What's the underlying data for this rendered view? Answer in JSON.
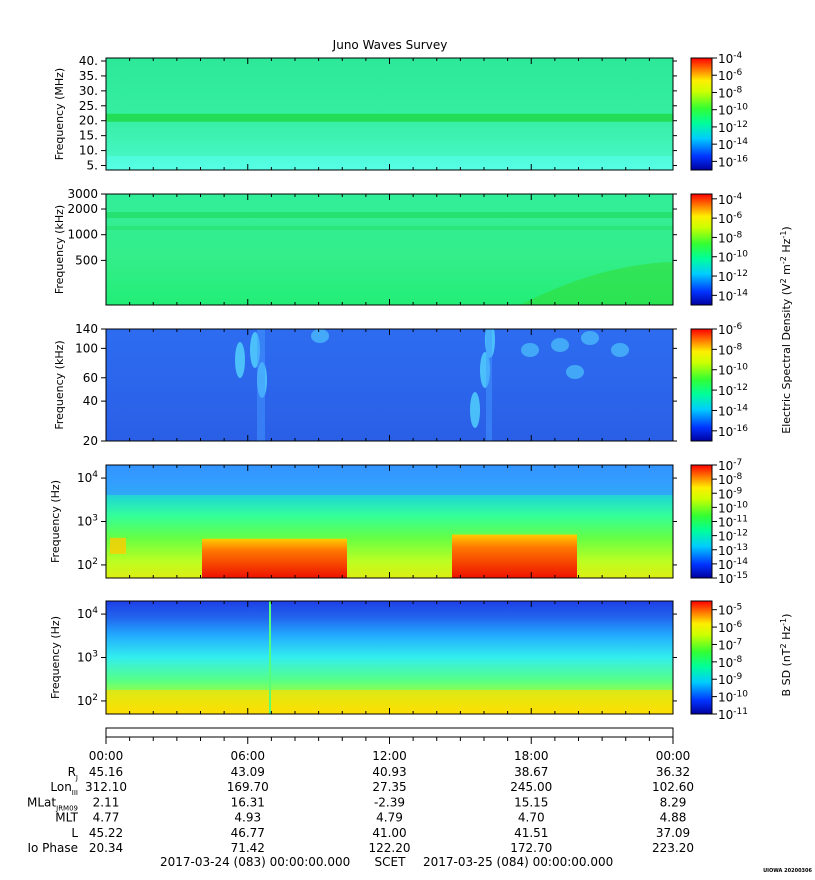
{
  "title": "Juno Waves Survey",
  "footer": {
    "start": "2017-03-24 (083) 00:00:00.000",
    "scet": "SCET",
    "end": "2017-03-25 (084) 00:00:00.000",
    "credit": "UIOWA 20200306"
  },
  "colorbar_labels": {
    "esd_left": "Electric Spectral Density (V",
    "esd_mid": " m",
    "esd_right": " Hz",
    "bsd_left": "B SD (nT",
    "bsd_right": " Hz"
  },
  "time_axis": {
    "ticks": [
      "00:00",
      "06:00",
      "12:00",
      "18:00",
      "00:00"
    ]
  },
  "ephemeris": {
    "rows": [
      {
        "label": "R",
        "sub": "J",
        "values": [
          "45.16",
          "43.09",
          "40.93",
          "38.67",
          "36.32"
        ]
      },
      {
        "label": "Lon",
        "sub": "III",
        "values": [
          "312.10",
          "169.70",
          "27.35",
          "245.00",
          "102.60"
        ]
      },
      {
        "label": "MLat",
        "sub": "JRM09",
        "values": [
          "2.11",
          "16.31",
          "-2.39",
          "15.15",
          "8.29"
        ]
      },
      {
        "label": "MLT",
        "sub": "",
        "values": [
          "4.77",
          "4.93",
          "4.79",
          "4.70",
          "4.88"
        ]
      },
      {
        "label": "L",
        "sub": "",
        "values": [
          "45.22",
          "46.77",
          "41.00",
          "41.51",
          "37.09"
        ]
      },
      {
        "label": "Io Phase",
        "sub": "",
        "values": [
          "20.34",
          "71.42",
          "122.20",
          "172.70",
          "223.20"
        ]
      }
    ]
  },
  "chart_data": [
    {
      "type": "heatmap",
      "ylabel": "Frequency (MHz)",
      "y_scale": "linear",
      "y_ticks": [
        "40.",
        "35.",
        "30.",
        "25.",
        "20.",
        "15.",
        "10.",
        "5."
      ],
      "y_tick_values": [
        40,
        35,
        30,
        25,
        20,
        15,
        10,
        5
      ],
      "ylim": [
        3.5,
        41
      ],
      "colorbar": {
        "ticks": [
          "-4",
          "-6",
          "-8",
          "-10",
          "-12",
          "-14",
          "-16"
        ],
        "min_exp": -17,
        "max_exp": -4
      },
      "background": "#2eeb96",
      "colors": {
        "band": "#22dd55",
        "low": "#55ffee"
      }
    },
    {
      "type": "heatmap",
      "ylabel": "Frequency (kHz)",
      "y_scale": "log",
      "y_ticks": [
        "3000",
        "2000",
        "1000",
        "500"
      ],
      "y_tick_values": [
        3000,
        2000,
        1000,
        500
      ],
      "ylim": [
        150,
        3000
      ],
      "colorbar": {
        "ticks": [
          "-4",
          "-6",
          "-8",
          "-10",
          "-12",
          "-14"
        ],
        "min_exp": -15,
        "max_exp": -3.5
      },
      "background": "#33ee99",
      "colors": {
        "band": "#22dd66",
        "arc": "#33dd33"
      }
    },
    {
      "type": "heatmap",
      "ylabel": "Frequency (kHz)",
      "y_scale": "log",
      "y_ticks": [
        "140",
        "100",
        "60",
        "40",
        "20"
      ],
      "y_tick_values": [
        140,
        100,
        60,
        40,
        20
      ],
      "ylim": [
        20,
        140
      ],
      "colorbar": {
        "ticks": [
          "-6",
          "-8",
          "-10",
          "-12",
          "-14",
          "-16"
        ],
        "min_exp": -17,
        "max_exp": -6
      },
      "background": "#2a66ee",
      "colors": {
        "burst": "#55ddff",
        "streak": "#4499ff"
      }
    },
    {
      "type": "heatmap",
      "ylabel": "Frequency (Hz)",
      "y_scale": "log",
      "y_ticks": [
        "4",
        "3",
        "2"
      ],
      "y_tick_values": [
        10000,
        1000,
        100
      ],
      "ylim": [
        50,
        20000
      ],
      "colorbar": {
        "ticks": [
          "-7",
          "-8",
          "-9",
          "-10",
          "-11",
          "-12",
          "-13",
          "-14",
          "-15"
        ],
        "min_exp": -15,
        "max_exp": -7
      },
      "background": "#22ddcc",
      "colors": {
        "low": "#ee2200",
        "mid": "#ffcc00",
        "upper": "#44ffaa",
        "top": "#3399ff"
      }
    },
    {
      "type": "heatmap",
      "ylabel": "Frequency (Hz)",
      "y_scale": "log",
      "y_ticks": [
        "4",
        "3",
        "2"
      ],
      "y_tick_values": [
        10000,
        1000,
        100
      ],
      "ylim": [
        50,
        20000
      ],
      "colorbar": {
        "ticks": [
          "-5",
          "-6",
          "-7",
          "-8",
          "-9",
          "-10",
          "-11"
        ],
        "min_exp": -11,
        "max_exp": -4.5
      },
      "background": "#33ddff",
      "colors": {
        "top": "#2255ee",
        "low": "#ffdd00",
        "mid": "#55ff77"
      }
    }
  ]
}
